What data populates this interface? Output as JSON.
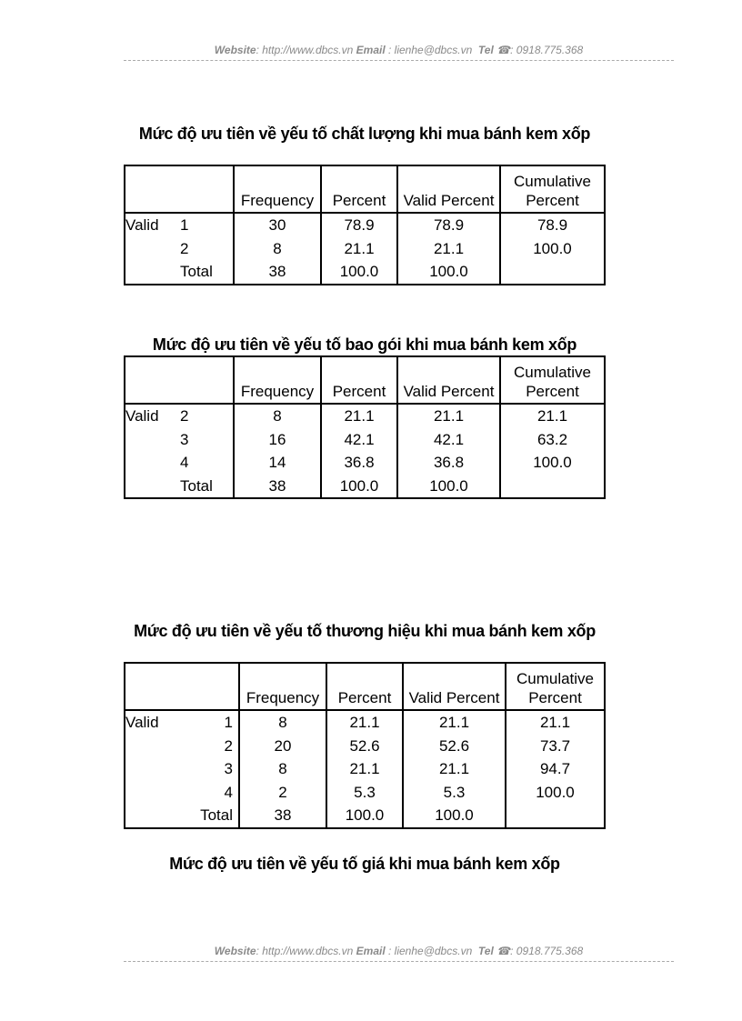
{
  "header": {
    "website_label": "Website",
    "website": ": http://www.dbcs.vn",
    "email_label": "Email",
    "email": " : lienhe@dbcs.vn",
    "tel_label": "Tel",
    "phone_icon": "phone-icon",
    "tel": ": 0918.775.368"
  },
  "footer": {
    "website_label": "Website",
    "website": ": http://www.dbcs.vn",
    "email_label": "Email",
    "email": " : lienhe@dbcs.vn",
    "tel_label": "Tel",
    "phone_icon": "phone-icon",
    "tel": ": 0918.775.368"
  },
  "columns": [
    "",
    "",
    "Frequency",
    "Percent",
    "Valid Percent",
    "Cumulative Percent"
  ],
  "tables": [
    {
      "title": "Mức độ ưu tiên về yếu tố chất lượng khi mua bánh kem xốp",
      "rows": [
        [
          "Valid",
          "1",
          "30",
          "78.9",
          "78.9",
          "78.9"
        ],
        [
          "",
          "2",
          "8",
          "21.1",
          "21.1",
          "100.0"
        ],
        [
          "",
          "Total",
          "38",
          "100.0",
          "100.0",
          ""
        ]
      ]
    },
    {
      "title": "Mức độ ưu tiên về yếu tố bao gói khi mua bánh kem xốp",
      "rows": [
        [
          "Valid",
          "2",
          "8",
          "21.1",
          "21.1",
          "21.1"
        ],
        [
          "",
          "3",
          "16",
          "42.1",
          "42.1",
          "63.2"
        ],
        [
          "",
          "4",
          "14",
          "36.8",
          "36.8",
          "100.0"
        ],
        [
          "",
          "Total",
          "38",
          "100.0",
          "100.0",
          ""
        ]
      ]
    },
    {
      "title": "Mức độ ưu tiên về yếu tố thương hiệu khi mua bánh kem xốp",
      "rows": [
        [
          "Valid",
          "1",
          "8",
          "21.1",
          "21.1",
          "21.1"
        ],
        [
          "",
          "2",
          "20",
          "52.6",
          "52.6",
          "73.7"
        ],
        [
          "",
          "3",
          "8",
          "21.1",
          "21.1",
          "94.7"
        ],
        [
          "",
          "4",
          "2",
          "5.3",
          "5.3",
          "100.0"
        ],
        [
          "",
          "Total",
          "38",
          "100.0",
          "100.0",
          ""
        ]
      ]
    }
  ],
  "next_title": "Mức độ ưu tiên về yếu tố giá khi mua bánh kem xốp"
}
